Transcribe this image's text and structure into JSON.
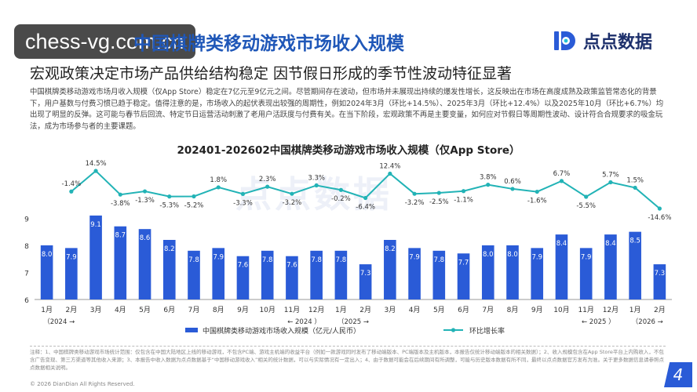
{
  "url_badge": "chess-vg.com.cn",
  "header": {
    "title": "中国棋牌类移动游戏市场收入规模",
    "logo_text": "点点数据",
    "subtitle": "宏观政策决定市场产品供给结构稳定 因节假日形成的季节性波动特征显著",
    "paragraph": "中国棋牌类移动游戏市场月收入规模（仅App Store）稳定在7亿元至9亿元之间。尽管期间存在波动，但市场并未展现出持续的爆发性增长，这反映出在市场在高度成熟及政策监管常态化的背景下，用户基数与付费习惯已趋于稳定。值得注意的是，市场收入的起伏表现出较强的周期性，例如2024年3月（环比+14.5%）、2025年3月（环比+12.4%）以及2025年10月（环比+6.7%）均出现了明显的反弹。这可能与春节后回流、特定节日运营活动刺激了老用户活跃度与付费有关。在当下阶段，宏观政策不再是主要变量，如何应对节假日等周期性波动、设计符合合规要求的吸金玩法，成为市场参与者的主要课题。"
  },
  "chart_data": {
    "type": "bar+line",
    "title": "202401-202602中国棋牌类移动游戏市场收入规模（仅App Store）",
    "categories": [
      "1月",
      "2月",
      "3月",
      "4月",
      "5月",
      "6月",
      "7月",
      "8月",
      "9月",
      "10月",
      "11月",
      "12月",
      "1月",
      "2月",
      "3月",
      "4月",
      "5月",
      "6月",
      "7月",
      "8月",
      "9月",
      "10月",
      "11月",
      "12月",
      "1月",
      "2月"
    ],
    "year_labels": [
      {
        "text": "（2024 →",
        "from": 0,
        "to": 1
      },
      {
        "text": "← 2024 ）",
        "from": 10,
        "to": 11
      },
      {
        "text": "（2025 →",
        "from": 12,
        "to": 13
      },
      {
        "text": "← 2025 ）",
        "from": 22,
        "to": 23
      },
      {
        "text": "（2026 →",
        "from": 24,
        "to": 25
      }
    ],
    "series": [
      {
        "name": "中国棋牌类移动游戏市场收入规模（亿元/人民币）",
        "type": "bar",
        "color": "#2a5bd7",
        "values": [
          8.0,
          7.9,
          9.1,
          8.7,
          8.6,
          8.2,
          7.8,
          7.9,
          7.6,
          7.8,
          7.6,
          7.8,
          7.8,
          7.3,
          8.2,
          7.9,
          7.8,
          7.7,
          8.0,
          8.0,
          7.9,
          8.4,
          7.9,
          8.4,
          8.5,
          7.3
        ]
      },
      {
        "name": "环比增长率",
        "type": "line",
        "color": "#22b3b6",
        "values": [
          null,
          -1.4,
          14.5,
          -3.8,
          -1.3,
          -5.3,
          -5.2,
          1.8,
          -3.3,
          2.3,
          -3.2,
          3.3,
          -0.2,
          -6.4,
          12.4,
          -3.2,
          -2.5,
          -1.1,
          3.8,
          0.6,
          -1.6,
          6.7,
          -5.5,
          5.7,
          1.5,
          -14.6
        ],
        "labels": [
          "",
          "-1.4%",
          "14.5%",
          "-3.8%",
          "-1.3%",
          "-5.3%",
          "-5.2%",
          "1.8%",
          "-3.3%",
          "2.3%",
          "-3.2%",
          "3.3%",
          "-0.2%",
          "-6.4%",
          "12.4%",
          "-3.2%",
          "-2.5%",
          "-1.1%",
          "3.8%",
          "0.6%",
          "-1.6%",
          "6.7%",
          "-5.5%",
          "5.7%",
          "1.5%",
          "-14.6%"
        ]
      }
    ],
    "y_ticks": [
      "6",
      "7",
      "8",
      "9"
    ],
    "ylim": [
      6,
      9.3
    ],
    "legend_position": "bottom"
  },
  "footnote": "注释：1、中国棋牌类移动游戏市场统计范围：仅包含在中国大陆地区上线的移动游戏，不包含PC端、游戏主机端的收益平台（例如一款游戏同时发布了移动端版本、PC端版本及主机版本，本报告仅统计移动端版本的相关数据）；2、收入规模包含在App Store平台上内购收入，不包含广告变现、第三方渠道等其他收入来源；3、本报告中收入数据为点点数据基于“中国移动游戏收入”相关的统计数据，可以与实际情况有一定出入；4、由于数据可能会在后续期间有所调整，可能与历史版本数据有所不同，最终以点点数据官方发布为准。关于更多数据信息请参照点点数据相关说明。",
  "copyright": "© 2026 DianDian All Rights Reserved.",
  "page_number": "4",
  "watermark": "点点数据",
  "colors": {
    "bar": "#2a5bd7",
    "line": "#22b3b6",
    "title": "#1f57b8"
  }
}
